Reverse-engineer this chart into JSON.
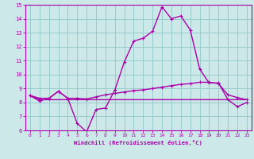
{
  "xlabel": "Windchill (Refroidissement éolien,°C)",
  "xlim": [
    -0.5,
    23.5
  ],
  "ylim": [
    6,
    15
  ],
  "yticks": [
    6,
    7,
    8,
    9,
    10,
    11,
    12,
    13,
    14,
    15
  ],
  "xticks": [
    0,
    1,
    2,
    3,
    4,
    5,
    6,
    7,
    8,
    9,
    10,
    11,
    12,
    13,
    14,
    15,
    16,
    17,
    18,
    19,
    20,
    21,
    22,
    23
  ],
  "bg_color": "#cce8e8",
  "line_color": "#aa00aa",
  "grid_color": "#99cccc",
  "line1_x": [
    0,
    1,
    2,
    3,
    4,
    5,
    6,
    7,
    8,
    9,
    10,
    11,
    12,
    13,
    14,
    15,
    16,
    17,
    18,
    19,
    20,
    21,
    22,
    23
  ],
  "line1_y": [
    8.5,
    8.1,
    8.3,
    8.8,
    8.3,
    6.5,
    5.9,
    7.5,
    7.6,
    8.9,
    10.9,
    12.4,
    12.6,
    13.1,
    14.85,
    14.0,
    14.2,
    13.2,
    10.4,
    9.4,
    9.4,
    8.2,
    7.7,
    8.0
  ],
  "line2_x": [
    0,
    1,
    2,
    3,
    4,
    5,
    6,
    7,
    8,
    9,
    10,
    11,
    12,
    13,
    14,
    15,
    16,
    17,
    18,
    19,
    20,
    21,
    22,
    23
  ],
  "line2_y": [
    8.5,
    8.3,
    8.3,
    8.8,
    8.3,
    8.3,
    8.25,
    8.4,
    8.55,
    8.65,
    8.75,
    8.85,
    8.9,
    9.0,
    9.1,
    9.2,
    9.3,
    9.35,
    9.45,
    9.45,
    9.35,
    8.55,
    8.35,
    8.2
  ],
  "line3_x": [
    0,
    1,
    2,
    3,
    4,
    5,
    6,
    7,
    8,
    9,
    10,
    11,
    12,
    13,
    14,
    15,
    16,
    17,
    18,
    19,
    20,
    21,
    22,
    23
  ],
  "line3_y": [
    8.5,
    8.2,
    8.2,
    8.2,
    8.2,
    8.2,
    8.2,
    8.2,
    8.2,
    8.2,
    8.2,
    8.2,
    8.2,
    8.2,
    8.2,
    8.2,
    8.2,
    8.2,
    8.2,
    8.2,
    8.2,
    8.2,
    8.2,
    8.2
  ]
}
